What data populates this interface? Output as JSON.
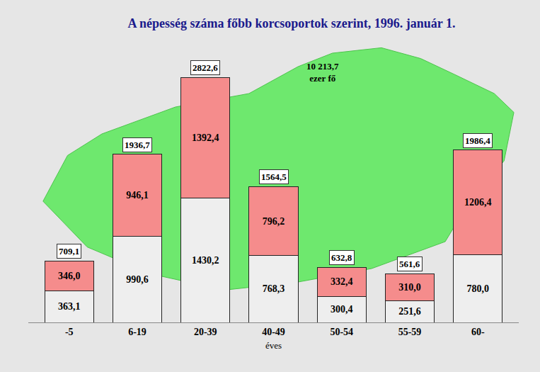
{
  "chart_data": {
    "type": "bar",
    "title": "A népesség száma főbb korcsoportok szerint, 1996. január 1.",
    "x_label": "éves",
    "categories": [
      "-5",
      "6-19",
      "20-39",
      "40-49",
      "50-54",
      "55-59",
      "60-"
    ],
    "stacked": true,
    "data_labels": true,
    "tick_labels": "x",
    "grid": false,
    "ylim": [
      0,
      3100
    ],
    "series": [
      {
        "color": "#eeeeee",
        "values": [
          363.1,
          990.6,
          1430.2,
          768.3,
          300.4,
          251.6,
          780.0
        ],
        "value_labels": [
          "363,1",
          "990,6",
          "1430,2",
          "768,3",
          "300,4",
          "251,6",
          "780,0"
        ]
      },
      {
        "color": "#f58c8c",
        "values": [
          346.0,
          946.1,
          1392.4,
          796.2,
          332.4,
          310.0,
          1206.4
        ],
        "value_labels": [
          "346,0",
          "946,1",
          "1392,4",
          "796,2",
          "332,4",
          "310,0",
          "1206,4"
        ]
      }
    ],
    "totals": [
      709.1,
      1936.7,
      2822.6,
      1564.5,
      632.8,
      561.6,
      1986.4
    ],
    "total_labels": [
      "709,1",
      "1936,7",
      "2822,6",
      "1564,5",
      "632,8",
      "561,6",
      "1986,4"
    ],
    "annotations": [
      {
        "text": [
          "10 213,7",
          "ezer fő"
        ]
      }
    ]
  }
}
